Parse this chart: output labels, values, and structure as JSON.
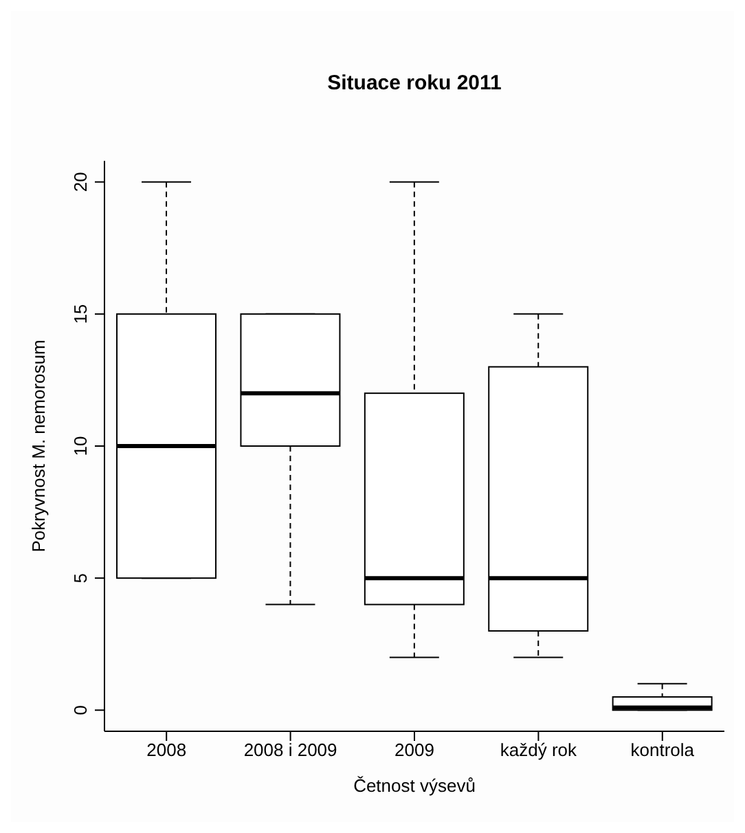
{
  "chart_data": {
    "type": "box",
    "title": "Situace roku 2011",
    "xlabel": "Četnost výsevů",
    "ylabel": "Pokryvnost M. nemorosum",
    "categories": [
      "2008",
      "2008 i 2009",
      "2009",
      "každý rok",
      "kontrola"
    ],
    "boxes": [
      {
        "low": 5,
        "q1": 5,
        "median": 10,
        "q3": 15,
        "high": 20
      },
      {
        "low": 4,
        "q1": 10,
        "median": 12,
        "q3": 15,
        "high": 15
      },
      {
        "low": 2,
        "q1": 4,
        "median": 5,
        "q3": 12,
        "high": 20
      },
      {
        "low": 2,
        "q1": 3,
        "median": 5,
        "q3": 13,
        "high": 15
      },
      {
        "low": 0,
        "q1": 0,
        "median": 0.1,
        "q3": 0.5,
        "high": 1
      }
    ],
    "color": "#000000",
    "ylim": [
      -0.8,
      20.8
    ],
    "yticks": [
      0,
      5,
      10,
      15,
      20
    ]
  }
}
